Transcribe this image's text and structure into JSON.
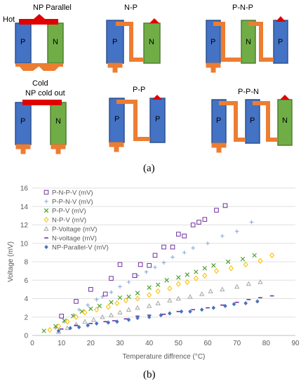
{
  "figure_a": {
    "labels": {
      "hot": "Hot",
      "np_parallel": "NP Parallel",
      "cold": "Cold",
      "np_cold_out": "NP cold out",
      "n_p": "N-P",
      "p_n_p": "P-N-P",
      "p_p": "P-P",
      "p_p_n": "P-P-N",
      "p": "P",
      "n": "N"
    },
    "caption": "(a)"
  },
  "figure_b": {
    "caption": "(b)"
  },
  "colors": {
    "p_leg": "#4472c4",
    "n_leg": "#70ad47",
    "hot": "#e00000",
    "cold": "#ed7d31"
  },
  "chart_data": {
    "type": "scatter",
    "xlabel": "Temperature diffrence (°C)",
    "ylabel": "Voltage (mV)",
    "xlim": [
      0,
      90
    ],
    "ylim": [
      0,
      16
    ],
    "xticks": [
      0,
      10,
      20,
      30,
      40,
      50,
      60,
      70,
      80,
      90
    ],
    "yticks": [
      0,
      2,
      4,
      6,
      8,
      10,
      12,
      14,
      16
    ],
    "grid": "horizontal",
    "legend": "top-left",
    "series": [
      {
        "name": "P-N-P-V (mV)",
        "color": "#7030a0",
        "marker": "square-open",
        "points": [
          [
            10,
            2.1
          ],
          [
            15,
            3.7
          ],
          [
            20,
            5
          ],
          [
            25,
            4.5
          ],
          [
            27,
            6.2
          ],
          [
            30,
            7.7
          ],
          [
            35,
            6.5
          ],
          [
            37,
            7.7
          ],
          [
            40,
            7.6
          ],
          [
            42,
            8.7
          ],
          [
            45,
            9.6
          ],
          [
            48,
            9.6
          ],
          [
            50,
            11
          ],
          [
            52,
            10.8
          ],
          [
            55,
            12
          ],
          [
            57,
            12.3
          ],
          [
            59,
            12.6
          ],
          [
            63,
            13.6
          ],
          [
            66,
            14.1
          ]
        ]
      },
      {
        "name": "P-P-N-V (mV)",
        "color": "#8eaadb",
        "marker": "plus",
        "points": [
          [
            8,
            0.8
          ],
          [
            11,
            1.5
          ],
          [
            14,
            2.2
          ],
          [
            16,
            2.8
          ],
          [
            19,
            3.3
          ],
          [
            22,
            3.9
          ],
          [
            24,
            4.2
          ],
          [
            27,
            4.7
          ],
          [
            30,
            5.3
          ],
          [
            33,
            5.8
          ],
          [
            36,
            6.5
          ],
          [
            39,
            6.9
          ],
          [
            42,
            7.4
          ],
          [
            45,
            7.9
          ],
          [
            48,
            8.5
          ],
          [
            52,
            9
          ],
          [
            55,
            9.5
          ],
          [
            60,
            10
          ],
          [
            65,
            10.8
          ],
          [
            70,
            11.3
          ],
          [
            75,
            12.3
          ]
        ]
      },
      {
        "name": "P-P-V (mV)",
        "color": "#4aa12a",
        "marker": "x",
        "points": [
          [
            4,
            0.5
          ],
          [
            8,
            1
          ],
          [
            11,
            1.6
          ],
          [
            14,
            2.1
          ],
          [
            17,
            2.6
          ],
          [
            20,
            2.9
          ],
          [
            23,
            3.2
          ],
          [
            27,
            3.6
          ],
          [
            30,
            4.1
          ],
          [
            33,
            4.2
          ],
          [
            36,
            4.6
          ],
          [
            40,
            5.2
          ],
          [
            43,
            5.5
          ],
          [
            46,
            6
          ],
          [
            50,
            6.3
          ],
          [
            53,
            6.6
          ],
          [
            56,
            6.9
          ],
          [
            59,
            7.3
          ],
          [
            62,
            7.6
          ],
          [
            67,
            8
          ],
          [
            72,
            8.3
          ],
          [
            76,
            8.7
          ]
        ]
      },
      {
        "name": "N-P-V (mV)",
        "color": "#ffc000",
        "marker": "diamond-open",
        "points": [
          [
            6,
            0.6
          ],
          [
            9,
            1
          ],
          [
            12,
            1.5
          ],
          [
            15,
            2
          ],
          [
            18,
            2.5
          ],
          [
            22,
            2.8
          ],
          [
            26,
            3.1
          ],
          [
            29,
            3.5
          ],
          [
            32,
            3.8
          ],
          [
            36,
            4
          ],
          [
            40,
            4.4
          ],
          [
            43,
            4.8
          ],
          [
            47,
            5.1
          ],
          [
            50,
            5.6
          ],
          [
            53,
            5.8
          ],
          [
            56,
            6.2
          ],
          [
            59,
            6.5
          ],
          [
            63,
            7
          ],
          [
            68,
            7.3
          ],
          [
            73,
            7.7
          ],
          [
            78,
            8.1
          ],
          [
            82,
            8.7
          ]
        ]
      },
      {
        "name": "P-Voltage (mV)",
        "color": "#a6a6a6",
        "marker": "triangle-open",
        "points": [
          [
            9,
            0.4
          ],
          [
            12,
            0.8
          ],
          [
            15,
            1.2
          ],
          [
            18,
            1.5
          ],
          [
            21,
            1.7
          ],
          [
            24,
            2
          ],
          [
            27,
            2.2
          ],
          [
            30,
            2.5
          ],
          [
            33,
            2.8
          ],
          [
            36,
            3
          ],
          [
            40,
            3.2
          ],
          [
            43,
            3.5
          ],
          [
            47,
            3.8
          ],
          [
            50,
            4
          ],
          [
            54,
            4.2
          ],
          [
            58,
            4.5
          ],
          [
            61,
            4.8
          ],
          [
            65,
            5
          ],
          [
            70,
            5.3
          ],
          [
            74,
            5.6
          ],
          [
            78,
            5.8
          ]
        ]
      },
      {
        "name": "N-voltage (mV)",
        "color": "#7030a0",
        "marker": "dash",
        "points": [
          [
            10,
            0.7
          ],
          [
            15,
            1.1
          ],
          [
            20,
            1.3
          ],
          [
            25,
            1.5
          ],
          [
            28,
            1.6
          ],
          [
            32,
            1.8
          ],
          [
            36,
            2.1
          ],
          [
            40,
            2.2
          ],
          [
            45,
            2.3
          ],
          [
            50,
            2.6
          ],
          [
            55,
            2.8
          ],
          [
            60,
            3
          ],
          [
            65,
            3.3
          ],
          [
            70,
            3.6
          ],
          [
            74,
            3.9
          ],
          [
            78,
            4.1
          ],
          [
            82,
            4.3
          ]
        ]
      },
      {
        "name": "NP-Parallel-V (mV)",
        "color": "#4472c4",
        "marker": "diamond",
        "points": [
          [
            9,
            0.5
          ],
          [
            13,
            0.8
          ],
          [
            16,
            0.9
          ],
          [
            19,
            1.1
          ],
          [
            22,
            1.3
          ],
          [
            26,
            1.4
          ],
          [
            29,
            1.5
          ],
          [
            33,
            1.7
          ],
          [
            36,
            1.9
          ],
          [
            40,
            2
          ],
          [
            44,
            2.2
          ],
          [
            47,
            2.4
          ],
          [
            51,
            2.6
          ],
          [
            54,
            2.6
          ],
          [
            58,
            2.8
          ],
          [
            62,
            3
          ],
          [
            66,
            3.2
          ],
          [
            69,
            3.4
          ],
          [
            73,
            3.5
          ],
          [
            77,
            3.7
          ]
        ]
      }
    ]
  }
}
